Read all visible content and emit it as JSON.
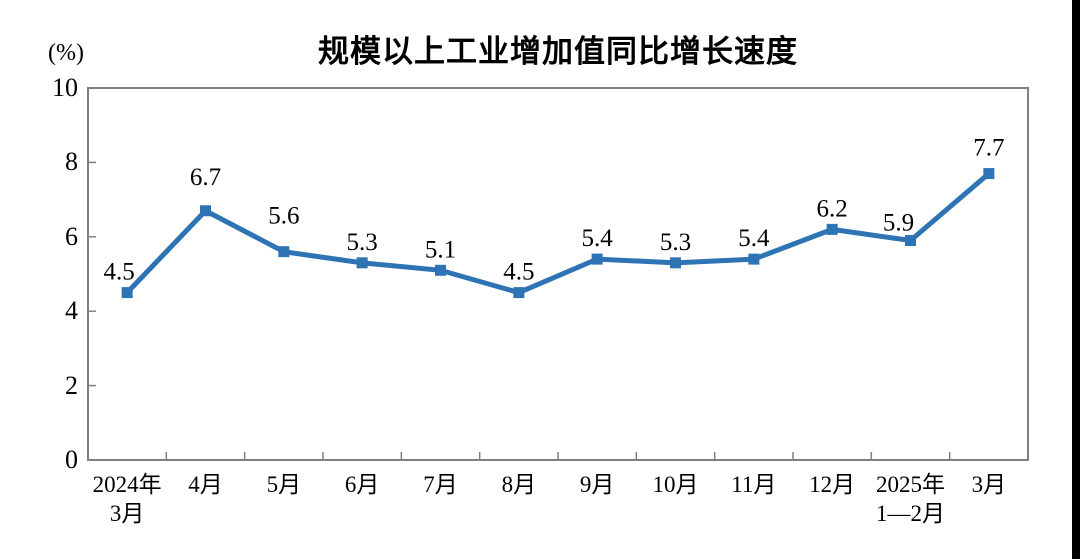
{
  "window": {
    "background": "#ffffff",
    "right_strip_color": "#000000"
  },
  "chart_data": {
    "type": "line",
    "title": "规模以上工业增加值同比增长速度",
    "subtitle": "",
    "xlabel": "",
    "ylabel": "(%)",
    "unit_label": "(%)",
    "categories": [
      [
        "2024年",
        "3月"
      ],
      [
        "4月"
      ],
      [
        "5月"
      ],
      [
        "6月"
      ],
      [
        "7月"
      ],
      [
        "8月"
      ],
      [
        "9月"
      ],
      [
        "10月"
      ],
      [
        "11月"
      ],
      [
        "12月"
      ],
      [
        "2025年",
        "1—2月"
      ],
      [
        "3月"
      ]
    ],
    "series": [
      {
        "name": "规模以上工业增加值同比增长速度",
        "values": [
          4.5,
          6.7,
          5.6,
          5.3,
          5.1,
          4.5,
          5.4,
          5.3,
          5.4,
          6.2,
          5.9,
          7.7
        ]
      }
    ],
    "data_labels": [
      "4.5",
      "6.7",
      "5.6",
      "5.3",
      "5.1",
      "4.5",
      "5.4",
      "5.3",
      "5.4",
      "6.2",
      "5.9",
      "7.7"
    ],
    "yticks": [
      0,
      2,
      4,
      6,
      8,
      10
    ],
    "ylim": [
      0,
      10
    ],
    "grid": false,
    "legend": "none",
    "marker": "square",
    "line_color": "#2E74B5",
    "axis_color": "#808080",
    "text_color": "#000000"
  }
}
